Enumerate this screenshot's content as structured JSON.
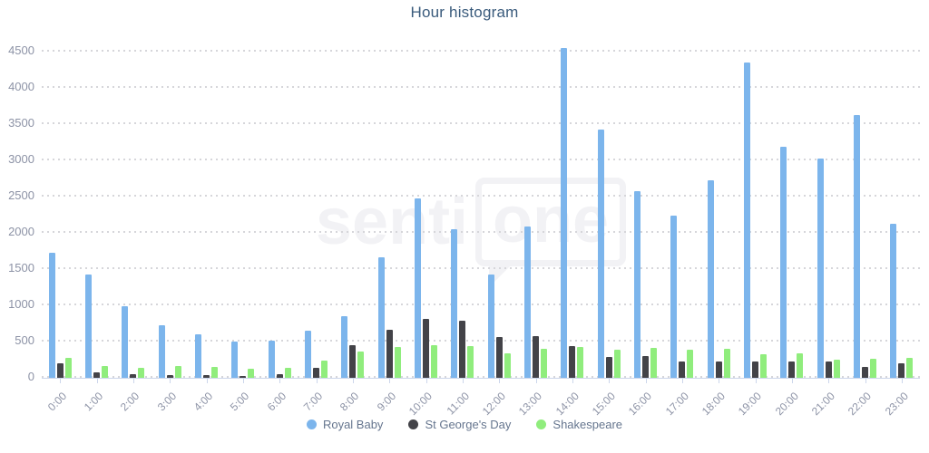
{
  "title": "Hour histogram",
  "watermark": {
    "left": "senti",
    "bubble": "one"
  },
  "chart_data": {
    "type": "bar",
    "title": "Hour histogram",
    "categories": [
      "0:00",
      "1:00",
      "2:00",
      "3:00",
      "4:00",
      "5:00",
      "6:00",
      "7:00",
      "8:00",
      "9:00",
      "10:00",
      "11:00",
      "12:00",
      "13:00",
      "14:00",
      "15:00",
      "16:00",
      "17:00",
      "18:00",
      "19:00",
      "20:00",
      "21:00",
      "22:00",
      "23:00"
    ],
    "series": [
      {
        "name": "Royal Baby",
        "color": "#7cb5ec",
        "values": [
          1730,
          1420,
          990,
          720,
          595,
          505,
          510,
          650,
          855,
          1665,
          2480,
          2050,
          1420,
          2090,
          4550,
          3430,
          2580,
          2240,
          2720,
          4350,
          3190,
          3020,
          3630,
          2120
        ]
      },
      {
        "name": "St George's Day",
        "color": "#434348",
        "values": [
          200,
          75,
          50,
          40,
          35,
          30,
          50,
          135,
          445,
          660,
          810,
          790,
          560,
          580,
          440,
          290,
          300,
          230,
          220,
          230,
          220,
          220,
          150,
          195
        ]
      },
      {
        "name": "Shakespeare",
        "color": "#90ed7d",
        "values": [
          280,
          165,
          135,
          160,
          150,
          120,
          135,
          240,
          365,
          430,
          450,
          440,
          340,
          400,
          430,
          390,
          410,
          385,
          400,
          320,
          335,
          255,
          265,
          270
        ]
      }
    ],
    "xlabel": "",
    "ylabel": "",
    "ylim": [
      0,
      4500
    ],
    "yticks": [
      0,
      500,
      1000,
      1500,
      2000,
      2500,
      3000,
      3500,
      4000,
      4500
    ],
    "grid": "horizontal-dotted",
    "legend_position": "bottom",
    "x_tick_label_rotation": -45
  },
  "colors": {
    "background": "#ffffff",
    "title": "#3a5b7c",
    "axis_label": "#8d93a6",
    "legend_text": "#65758e",
    "gridline": "#d6d6da",
    "axis_line": "#ccd6eb",
    "watermark": "#f2f2f5"
  }
}
